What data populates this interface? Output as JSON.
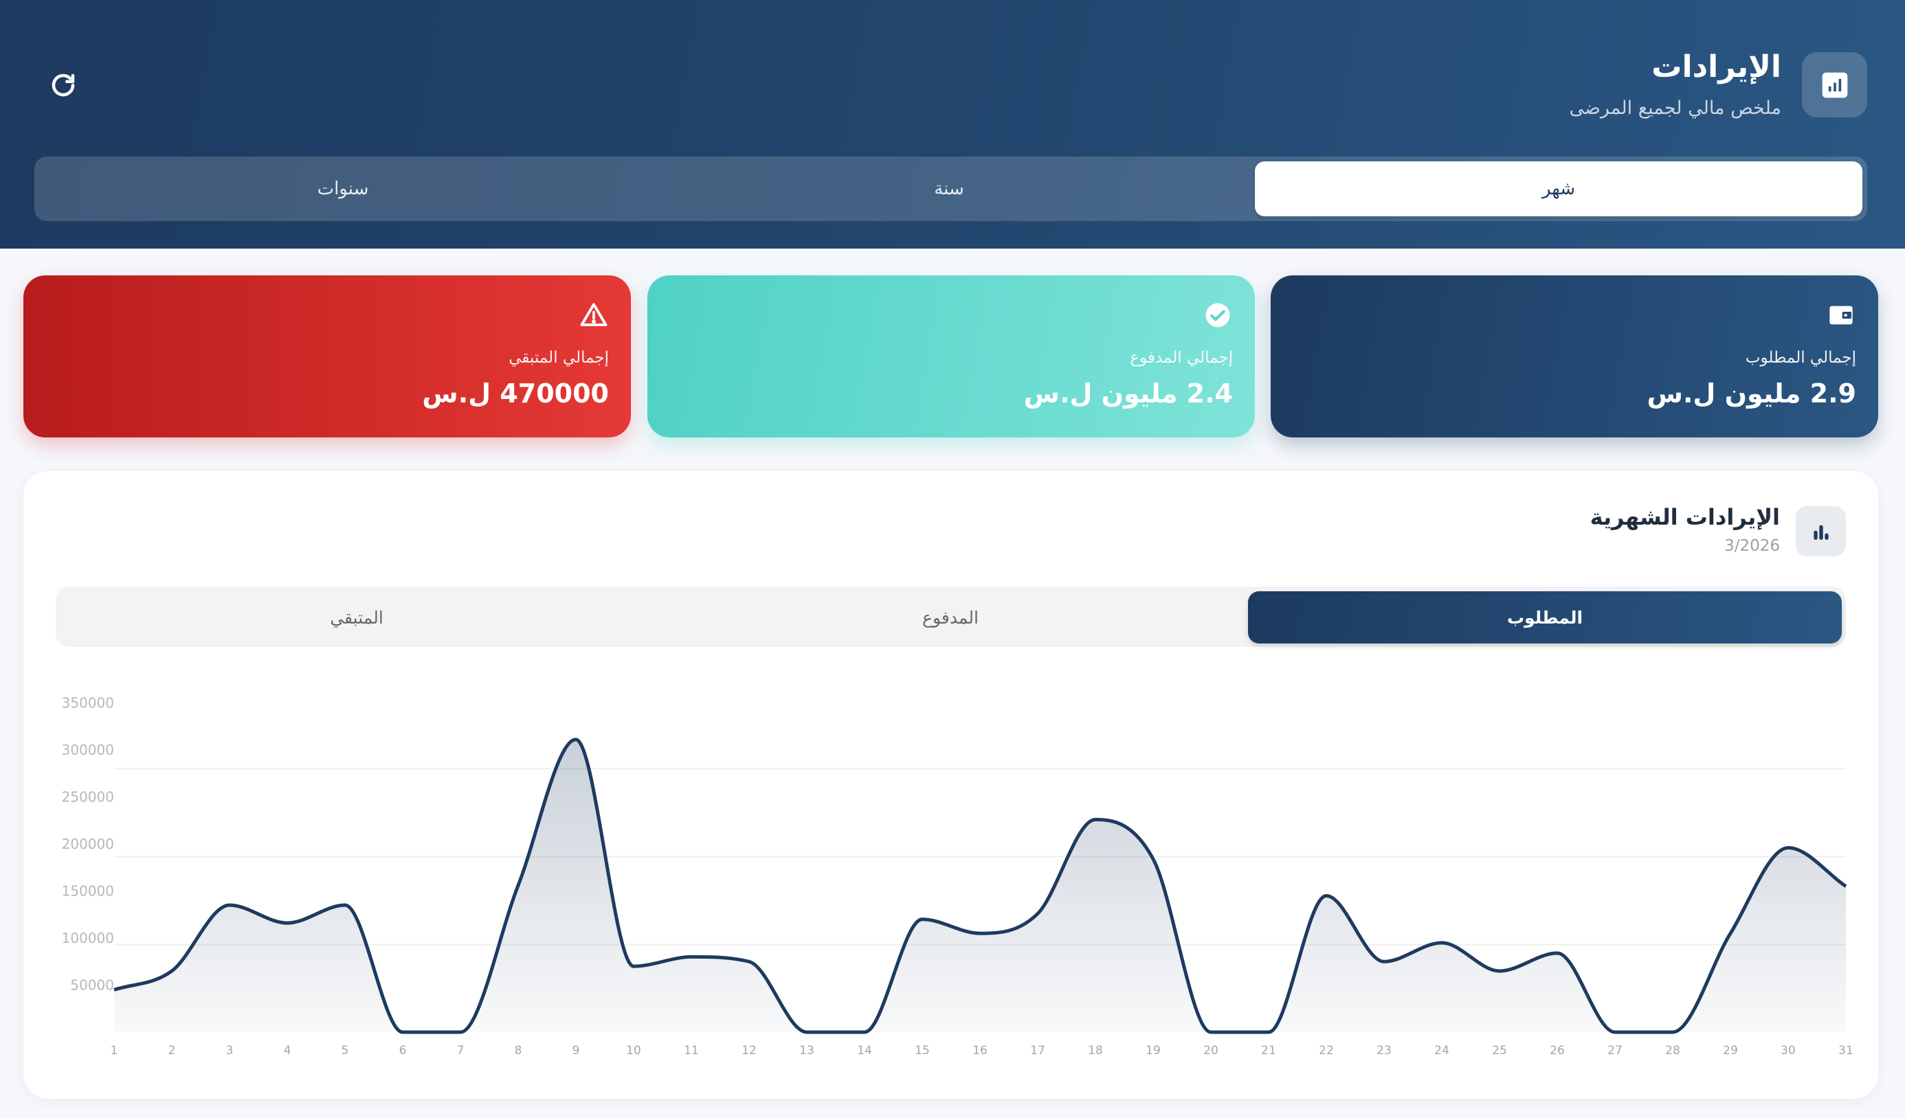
{
  "header": {
    "title": "الإيرادات",
    "subtitle": "ملخص مالي لجميع المرضى",
    "icon": "chart-report-icon",
    "refresh_icon": "refresh-icon",
    "period_tabs": [
      {
        "label": "شهر",
        "active": true
      },
      {
        "label": "سنة",
        "active": false
      },
      {
        "label": "سنوات",
        "active": false
      }
    ]
  },
  "cards": {
    "required": {
      "label": "إجمالي المطلوب",
      "value": "2.9 مليون ل.س",
      "icon": "wallet-icon",
      "color": "#1e3a5f"
    },
    "paid": {
      "label": "إجمالي المدفوع",
      "value": "2.4 مليون ل.س",
      "icon": "check-circle-icon",
      "color": "#4fd1c5"
    },
    "remaining": {
      "label": "إجمالي المتبقي",
      "value": "470000 ل.س",
      "icon": "warning-icon",
      "color": "#d32f2f"
    }
  },
  "chart_section": {
    "title": "الإيرادات الشهرية",
    "date": "3/2026",
    "icon": "bar-chart-icon",
    "metric_tabs": [
      {
        "label": "المطلوب",
        "active": true
      },
      {
        "label": "المدفوع",
        "active": false
      },
      {
        "label": "المتبقي",
        "active": false
      }
    ]
  },
  "chart_data": {
    "type": "area",
    "x": [
      1,
      2,
      3,
      4,
      5,
      6,
      7,
      8,
      9,
      10,
      11,
      12,
      13,
      14,
      15,
      16,
      17,
      18,
      19,
      20,
      21,
      22,
      23,
      24,
      25,
      26,
      27,
      28,
      29,
      30,
      31
    ],
    "values": [
      45000,
      65000,
      135000,
      116000,
      135000,
      0,
      0,
      156000,
      311000,
      70000,
      80000,
      75000,
      0,
      0,
      120000,
      105000,
      126000,
      226000,
      184000,
      0,
      0,
      145000,
      75000,
      95000,
      65000,
      84000,
      0,
      0,
      105000,
      196000,
      155000
    ],
    "y_ticks": [
      "50000",
      "100000",
      "150000",
      "200000",
      "250000",
      "300000",
      "350000"
    ],
    "ylim": [
      0,
      350000
    ],
    "line_color": "#1e3a5f",
    "grid": true,
    "legend": "none"
  }
}
